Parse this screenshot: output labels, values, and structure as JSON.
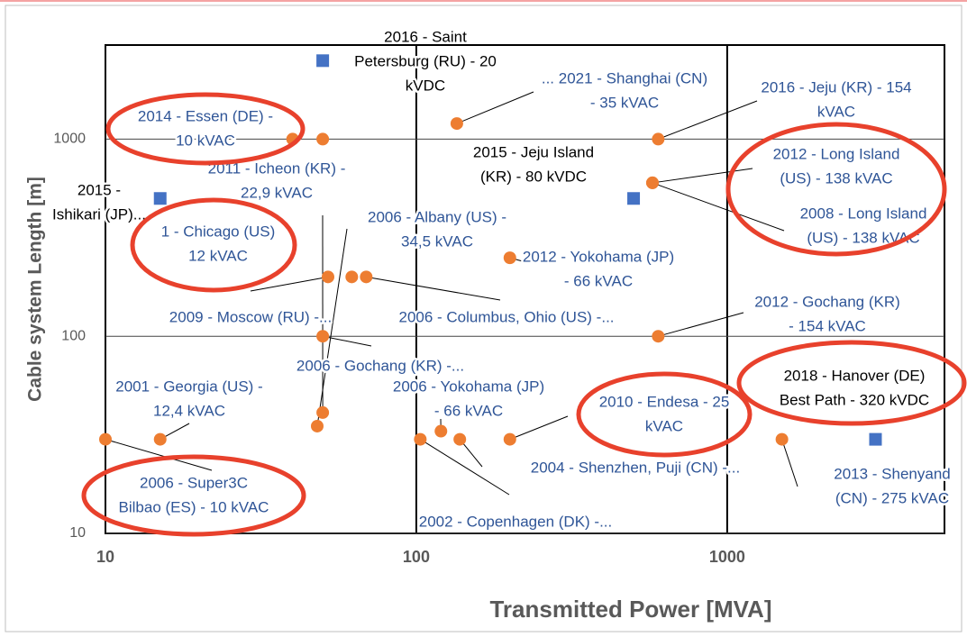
{
  "chart_data": {
    "type": "scatter",
    "x_label": "Transmitted Power [MVA]",
    "y_label": "Cable system Length [m]",
    "log_x": true,
    "log_y": true,
    "grid": true,
    "xlim": [
      10,
      5000
    ],
    "ylim": [
      10,
      3000
    ],
    "xticks": [
      10,
      100,
      1000
    ],
    "yticks": [
      10,
      100,
      1000
    ],
    "series": [
      {
        "color": "#ed7d31",
        "label_color": "#2f5597",
        "marker": "circle",
        "x": [
          10,
          15,
          40,
          50,
          50,
          48,
          52,
          62,
          69,
          50,
          135,
          200,
          600,
          575,
          575,
          600,
          103,
          120,
          138,
          200,
          1500
        ],
        "values": [
          30,
          30,
          1000,
          1000,
          41,
          35,
          200,
          200,
          200,
          100,
          1200,
          250,
          1000,
          600,
          600,
          100,
          30,
          33,
          30,
          30,
          30
        ],
        "labels": [
          [
            "2006 - Super3C",
            "Bilbao (ES) - 10 kVAC"
          ],
          [
            "2001 - Georgia (US) -",
            "12,4 kVAC"
          ],
          [
            "2014 - Essen (DE) -",
            "10 kVAC"
          ],
          null,
          [
            "2011 - Icheon (KR) -",
            "22,9 kVAC"
          ],
          [
            "2006 - Albany (US) -",
            "34,5 kVAC"
          ],
          [
            "1 - Chicago (US)",
            "12 kVAC"
          ],
          [
            "2009 - Moscow (RU) -..."
          ],
          [
            "2006 - Columbus, Ohio (US) -..."
          ],
          [
            "2006 - Gochang (KR) -..."
          ],
          [
            "... 2021 - Shanghai (CN)",
            "- 35 kVAC"
          ],
          [
            "2012 - Yokohama (JP)",
            "- 66 kVAC"
          ],
          [
            "2016 - Jeju (KR) - 154",
            "kVAC"
          ],
          [
            "2012 - Long Island",
            "(US) - 138 kVAC"
          ],
          [
            "2008 - Long Island",
            "(US) - 138 kVAC"
          ],
          [
            "2012 - Gochang (KR)",
            "- 154 kVAC"
          ],
          [
            "2002 - Copenhagen (DK) -..."
          ],
          [
            "2006 - Yokohama (JP)",
            "- 66 kVAC"
          ],
          [
            "2004 - Shenzhen, Puji (CN) -..."
          ],
          [
            "2010 - Endesa - 25",
            "kVAC"
          ],
          [
            "2013 - Shenyand",
            "(CN) - 275 kVAC"
          ]
        ]
      },
      {
        "color": "#4472c4",
        "label_color": "#000000",
        "marker": "square",
        "x": [
          50,
          15,
          500,
          3000
        ],
        "values": [
          2500,
          500,
          500,
          30
        ],
        "labels": [
          [
            "2016 - Saint",
            "Petersburg (RU) - 20",
            "kVDC"
          ],
          [
            "2015 -",
            "Ishikari (JP)..."
          ],
          [
            "2015 - Jeju Island",
            "(KR) - 80 kVDC"
          ],
          [
            "2018 - Hanover (DE)",
            "Best Path - 320 kVDC"
          ]
        ]
      }
    ]
  }
}
